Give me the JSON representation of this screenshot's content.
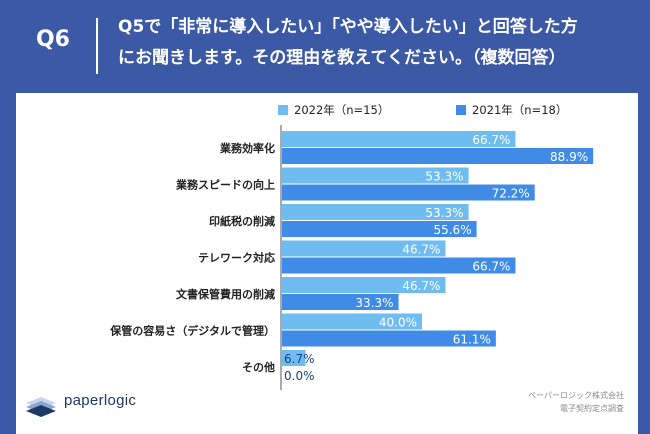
{
  "header": {
    "qnum": "Q6",
    "line1": "Q5で「非常に導入したい」「やや導入したい」と回答した方",
    "line2": "にお聞きします。その理由を教えてください。（複数回答）"
  },
  "footer": {
    "logo_text": "paperlogic",
    "source_line1": "ペーパーロジック株式会社",
    "source_line2": "電子契約定点調査"
  },
  "colors": {
    "background": "#3b59a5",
    "series_2022": "#6fbcf0",
    "series_2021": "#3f8be6"
  },
  "chart_data": {
    "type": "bar",
    "orientation": "horizontal",
    "categories": [
      "業務効率化",
      "業務スピードの向上",
      "印紙税の削減",
      "テレワーク対応",
      "文書保管費用の削減",
      "保管の容易さ（デジタルで管理）",
      "その他"
    ],
    "series": [
      {
        "name": "2022年（n=15）",
        "values": [
          66.7,
          53.3,
          53.3,
          46.7,
          46.7,
          40.0,
          6.7
        ],
        "labels": [
          "66.7%",
          "53.3%",
          "53.3%",
          "46.7%",
          "46.7%",
          "40.0%",
          "6.7%"
        ]
      },
      {
        "name": "2021年（n=18）",
        "values": [
          88.9,
          72.2,
          55.6,
          66.7,
          33.3,
          61.1,
          0.0
        ],
        "labels": [
          "88.9%",
          "72.2%",
          "55.6%",
          "66.7%",
          "33.3%",
          "61.1%",
          "0.0%"
        ]
      }
    ],
    "unit": "%",
    "xlim": [
      0,
      100
    ],
    "grid": false,
    "legend_position": "top"
  }
}
